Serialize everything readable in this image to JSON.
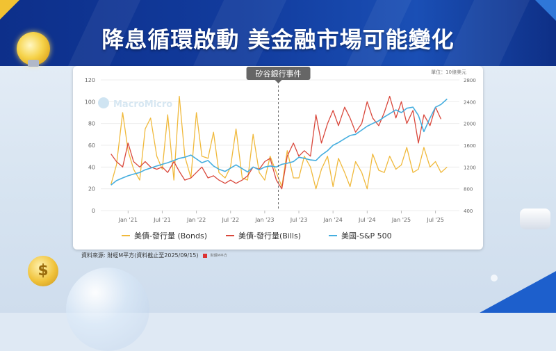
{
  "header": {
    "title": "降息循環啟動 美金融市場可能變化"
  },
  "source": {
    "text": "資料來源: 財經M平方(資料截止至2025/09/15)",
    "brand": "財經M平方"
  },
  "colors": {
    "bonds": "#f0b93b",
    "bills": "#d9483c",
    "sp500": "#45aedf",
    "banner": "#123c9e"
  },
  "chart_data": {
    "type": "line",
    "unit": "單位：10億美元",
    "watermark": "MacroMicro",
    "annotation": {
      "label": "矽谷銀行事件",
      "x": 2023.2
    },
    "x_ticks": [
      {
        "x": 2021.0,
        "label": "Jan '21"
      },
      {
        "x": 2021.5,
        "label": "Jul '21"
      },
      {
        "x": 2022.0,
        "label": "Jan '22"
      },
      {
        "x": 2022.5,
        "label": "Jul '22"
      },
      {
        "x": 2023.0,
        "label": "Jan '23"
      },
      {
        "x": 2023.5,
        "label": "Jul '23"
      },
      {
        "x": 2024.0,
        "label": "Jan '24"
      },
      {
        "x": 2024.5,
        "label": "Jul '24"
      },
      {
        "x": 2025.0,
        "label": "Jan '25"
      },
      {
        "x": 2025.5,
        "label": "Jul '25"
      }
    ],
    "xlim": [
      2020.6,
      2025.85
    ],
    "y_left": {
      "ticks": [
        0,
        20,
        40,
        60,
        80,
        100,
        120
      ],
      "lim": [
        0,
        120
      ]
    },
    "y_right": {
      "ticks": [
        400,
        800,
        1200,
        1600,
        2000,
        2400,
        2800
      ],
      "lim": [
        400,
        2800
      ]
    },
    "series": [
      {
        "name": "美債-發行量 (Bonds)",
        "axis": "left",
        "color": "#f0b93b",
        "points": [
          [
            2020.75,
            24
          ],
          [
            2020.83,
            42
          ],
          [
            2020.92,
            90
          ],
          [
            2021.0,
            55
          ],
          [
            2021.08,
            38
          ],
          [
            2021.17,
            28
          ],
          [
            2021.25,
            75
          ],
          [
            2021.33,
            85
          ],
          [
            2021.42,
            50
          ],
          [
            2021.5,
            38
          ],
          [
            2021.58,
            88
          ],
          [
            2021.67,
            28
          ],
          [
            2021.75,
            105
          ],
          [
            2021.83,
            50
          ],
          [
            2021.92,
            30
          ],
          [
            2022.0,
            90
          ],
          [
            2022.08,
            50
          ],
          [
            2022.17,
            48
          ],
          [
            2022.25,
            72
          ],
          [
            2022.33,
            35
          ],
          [
            2022.42,
            30
          ],
          [
            2022.5,
            40
          ],
          [
            2022.58,
            75
          ],
          [
            2022.67,
            30
          ],
          [
            2022.75,
            28
          ],
          [
            2022.83,
            70
          ],
          [
            2022.92,
            35
          ],
          [
            2023.0,
            28
          ],
          [
            2023.08,
            50
          ],
          [
            2023.17,
            35
          ],
          [
            2023.25,
            22
          ],
          [
            2023.33,
            55
          ],
          [
            2023.42,
            30
          ],
          [
            2023.5,
            30
          ],
          [
            2023.58,
            50
          ],
          [
            2023.67,
            40
          ],
          [
            2023.75,
            20
          ],
          [
            2023.83,
            38
          ],
          [
            2023.92,
            50
          ],
          [
            2024.0,
            22
          ],
          [
            2024.08,
            48
          ],
          [
            2024.17,
            35
          ],
          [
            2024.25,
            22
          ],
          [
            2024.33,
            45
          ],
          [
            2024.42,
            35
          ],
          [
            2024.5,
            20
          ],
          [
            2024.58,
            52
          ],
          [
            2024.67,
            37
          ],
          [
            2024.75,
            35
          ],
          [
            2024.83,
            50
          ],
          [
            2024.92,
            38
          ],
          [
            2025.0,
            42
          ],
          [
            2025.08,
            58
          ],
          [
            2025.17,
            35
          ],
          [
            2025.25,
            38
          ],
          [
            2025.33,
            58
          ],
          [
            2025.42,
            40
          ],
          [
            2025.5,
            45
          ],
          [
            2025.58,
            35
          ],
          [
            2025.67,
            40
          ]
        ]
      },
      {
        "name": "美債-發行量(Bills)",
        "axis": "left",
        "color": "#d9483c",
        "points": [
          [
            2020.75,
            52
          ],
          [
            2020.83,
            45
          ],
          [
            2020.92,
            40
          ],
          [
            2021.0,
            62
          ],
          [
            2021.08,
            45
          ],
          [
            2021.17,
            40
          ],
          [
            2021.25,
            45
          ],
          [
            2021.33,
            40
          ],
          [
            2021.42,
            38
          ],
          [
            2021.5,
            40
          ],
          [
            2021.58,
            35
          ],
          [
            2021.67,
            45
          ],
          [
            2021.75,
            36
          ],
          [
            2021.83,
            28
          ],
          [
            2021.92,
            30
          ],
          [
            2022.0,
            35
          ],
          [
            2022.08,
            40
          ],
          [
            2022.17,
            30
          ],
          [
            2022.25,
            32
          ],
          [
            2022.33,
            28
          ],
          [
            2022.42,
            25
          ],
          [
            2022.5,
            28
          ],
          [
            2022.58,
            25
          ],
          [
            2022.67,
            28
          ],
          [
            2022.75,
            32
          ],
          [
            2022.83,
            40
          ],
          [
            2022.92,
            38
          ],
          [
            2023.0,
            45
          ],
          [
            2023.08,
            48
          ],
          [
            2023.17,
            28
          ],
          [
            2023.25,
            20
          ],
          [
            2023.33,
            50
          ],
          [
            2023.42,
            62
          ],
          [
            2023.5,
            50
          ],
          [
            2023.58,
            55
          ],
          [
            2023.67,
            50
          ],
          [
            2023.75,
            88
          ],
          [
            2023.83,
            62
          ],
          [
            2023.92,
            80
          ],
          [
            2024.0,
            92
          ],
          [
            2024.08,
            78
          ],
          [
            2024.17,
            95
          ],
          [
            2024.25,
            85
          ],
          [
            2024.33,
            72
          ],
          [
            2024.42,
            80
          ],
          [
            2024.5,
            100
          ],
          [
            2024.58,
            85
          ],
          [
            2024.67,
            78
          ],
          [
            2024.75,
            90
          ],
          [
            2024.83,
            105
          ],
          [
            2024.92,
            85
          ],
          [
            2025.0,
            100
          ],
          [
            2025.08,
            80
          ],
          [
            2025.17,
            92
          ],
          [
            2025.25,
            62
          ],
          [
            2025.33,
            88
          ],
          [
            2025.42,
            78
          ],
          [
            2025.5,
            95
          ],
          [
            2025.58,
            84
          ]
        ]
      },
      {
        "name": "美國-S&P 500",
        "axis": "right",
        "color": "#45aedf",
        "points": [
          [
            2020.75,
            870
          ],
          [
            2020.83,
            950
          ],
          [
            2020.92,
            1000
          ],
          [
            2021.0,
            1040
          ],
          [
            2021.08,
            1070
          ],
          [
            2021.17,
            1100
          ],
          [
            2021.25,
            1150
          ],
          [
            2021.33,
            1180
          ],
          [
            2021.42,
            1220
          ],
          [
            2021.5,
            1250
          ],
          [
            2021.58,
            1280
          ],
          [
            2021.67,
            1320
          ],
          [
            2021.75,
            1360
          ],
          [
            2021.83,
            1380
          ],
          [
            2021.92,
            1420
          ],
          [
            2022.0,
            1350
          ],
          [
            2022.08,
            1280
          ],
          [
            2022.17,
            1320
          ],
          [
            2022.25,
            1220
          ],
          [
            2022.33,
            1160
          ],
          [
            2022.42,
            1120
          ],
          [
            2022.5,
            1180
          ],
          [
            2022.58,
            1240
          ],
          [
            2022.67,
            1170
          ],
          [
            2022.75,
            1110
          ],
          [
            2022.83,
            1200
          ],
          [
            2022.92,
            1150
          ],
          [
            2023.0,
            1200
          ],
          [
            2023.08,
            1220
          ],
          [
            2023.17,
            1200
          ],
          [
            2023.25,
            1250
          ],
          [
            2023.33,
            1270
          ],
          [
            2023.42,
            1300
          ],
          [
            2023.5,
            1380
          ],
          [
            2023.58,
            1360
          ],
          [
            2023.67,
            1330
          ],
          [
            2023.75,
            1320
          ],
          [
            2023.83,
            1420
          ],
          [
            2023.92,
            1500
          ],
          [
            2024.0,
            1600
          ],
          [
            2024.08,
            1650
          ],
          [
            2024.17,
            1720
          ],
          [
            2024.25,
            1780
          ],
          [
            2024.33,
            1800
          ],
          [
            2024.42,
            1880
          ],
          [
            2024.5,
            1950
          ],
          [
            2024.58,
            2000
          ],
          [
            2024.67,
            2050
          ],
          [
            2024.75,
            2120
          ],
          [
            2024.83,
            2180
          ],
          [
            2024.92,
            2250
          ],
          [
            2025.0,
            2200
          ],
          [
            2025.08,
            2280
          ],
          [
            2025.17,
            2300
          ],
          [
            2025.25,
            2150
          ],
          [
            2025.33,
            1850
          ],
          [
            2025.42,
            2100
          ],
          [
            2025.5,
            2300
          ],
          [
            2025.58,
            2350
          ],
          [
            2025.67,
            2450
          ]
        ]
      }
    ]
  }
}
